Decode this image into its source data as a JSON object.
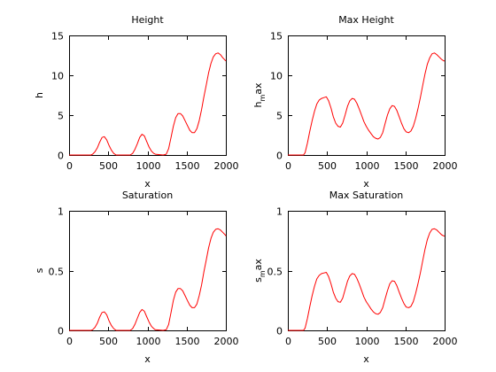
{
  "colors": {
    "line": "#ff0000",
    "axis": "#000000",
    "background": "#ffffff"
  },
  "chart_data": [
    {
      "type": "line",
      "title": "Height",
      "xlabel": "x",
      "ylabel": {
        "main": "h",
        "sub": ""
      },
      "xlim": [
        0,
        2000
      ],
      "ylim": [
        0,
        15
      ],
      "xticks": [
        0,
        500,
        1000,
        1500,
        2000
      ],
      "yticks": [
        0,
        5,
        10,
        15
      ],
      "ytick_labels": [
        "0",
        "5",
        "10",
        "15"
      ],
      "grid": false,
      "series": [
        {
          "x": [
            0,
            280,
            300,
            330,
            360,
            390,
            420,
            450,
            480,
            510,
            540,
            570,
            600,
            700,
            780,
            810,
            840,
            870,
            900,
            930,
            960,
            990,
            1020,
            1050,
            1080,
            1100,
            1200,
            1240,
            1270,
            1300,
            1330,
            1360,
            1390,
            1420,
            1450,
            1480,
            1510,
            1540,
            1570,
            1600,
            1630,
            1660,
            1690,
            1720,
            1750,
            1780,
            1810,
            1840,
            1870,
            1900,
            1930,
            1960,
            1990,
            2000
          ],
          "y": [
            0,
            0,
            0.1,
            0.4,
            0.9,
            1.6,
            2.2,
            2.3,
            1.9,
            1.2,
            0.6,
            0.2,
            0,
            0,
            0,
            0.2,
            0.7,
            1.4,
            2.2,
            2.6,
            2.4,
            1.7,
            1.0,
            0.5,
            0.2,
            0.1,
            0,
            0.1,
            0.8,
            2.2,
            3.6,
            4.7,
            5.2,
            5.2,
            4.9,
            4.3,
            3.7,
            3.1,
            2.8,
            2.8,
            3.3,
            4.3,
            5.7,
            7.3,
            8.8,
            10.3,
            11.5,
            12.3,
            12.7,
            12.8,
            12.6,
            12.2,
            11.9,
            11.8
          ]
        }
      ]
    },
    {
      "type": "line",
      "title": "Max Height",
      "xlabel": "x",
      "ylabel": {
        "main": "h",
        "sub": "m",
        "rest": "ax"
      },
      "xlim": [
        0,
        2000
      ],
      "ylim": [
        0,
        15
      ],
      "xticks": [
        0,
        500,
        1000,
        1500,
        2000
      ],
      "yticks": [
        0,
        5,
        10,
        15
      ],
      "ytick_labels": [
        "0",
        "5",
        "10",
        "15"
      ],
      "grid": false,
      "series": [
        {
          "x": [
            0,
            200,
            220,
            250,
            280,
            310,
            340,
            370,
            400,
            430,
            460,
            490,
            520,
            550,
            580,
            610,
            640,
            670,
            700,
            730,
            760,
            790,
            820,
            850,
            880,
            910,
            940,
            970,
            1000,
            1030,
            1060,
            1090,
            1120,
            1150,
            1180,
            1210,
            1240,
            1270,
            1300,
            1330,
            1360,
            1390,
            1420,
            1450,
            1480,
            1510,
            1540,
            1570,
            1600,
            1630,
            1660,
            1690,
            1720,
            1750,
            1780,
            1810,
            1840,
            1870,
            1900,
            1930,
            1960,
            1990,
            2000
          ],
          "y": [
            0,
            0,
            0.3,
            1.5,
            3.0,
            4.3,
            5.5,
            6.4,
            6.9,
            7.1,
            7.2,
            7.3,
            6.8,
            5.9,
            4.8,
            4.0,
            3.6,
            3.5,
            4.0,
            5.0,
            6.1,
            6.8,
            7.1,
            7.0,
            6.5,
            5.8,
            5.0,
            4.2,
            3.6,
            3.1,
            2.7,
            2.3,
            2.1,
            2.0,
            2.2,
            2.8,
            3.9,
            5.0,
            5.8,
            6.2,
            6.1,
            5.6,
            4.8,
            4.0,
            3.3,
            2.9,
            2.8,
            3.0,
            3.6,
            4.6,
            5.8,
            7.2,
            8.7,
            10.2,
            11.4,
            12.2,
            12.7,
            12.8,
            12.6,
            12.3,
            12.0,
            11.8,
            11.8
          ]
        }
      ]
    },
    {
      "type": "line",
      "title": "Saturation",
      "xlabel": "x",
      "ylabel": {
        "main": "s",
        "sub": ""
      },
      "xlim": [
        0,
        2000
      ],
      "ylim": [
        0,
        1
      ],
      "xticks": [
        0,
        500,
        1000,
        1500,
        2000
      ],
      "yticks": [
        0,
        0.5,
        1
      ],
      "ytick_labels": [
        "0",
        "0.5",
        "1"
      ],
      "grid": false,
      "series": [
        {
          "x": [
            0,
            280,
            300,
            330,
            360,
            390,
            420,
            450,
            480,
            510,
            540,
            570,
            600,
            700,
            780,
            810,
            840,
            870,
            900,
            930,
            960,
            990,
            1020,
            1050,
            1080,
            1100,
            1200,
            1240,
            1270,
            1300,
            1330,
            1360,
            1390,
            1420,
            1450,
            1480,
            1510,
            1540,
            1570,
            1600,
            1630,
            1660,
            1690,
            1720,
            1750,
            1780,
            1810,
            1840,
            1870,
            1900,
            1930,
            1960,
            1990,
            2000
          ],
          "y": [
            0,
            0,
            0.005,
            0.025,
            0.06,
            0.11,
            0.15,
            0.155,
            0.13,
            0.08,
            0.04,
            0.015,
            0,
            0,
            0,
            0.015,
            0.05,
            0.1,
            0.15,
            0.175,
            0.16,
            0.115,
            0.07,
            0.035,
            0.015,
            0.005,
            0,
            0.005,
            0.05,
            0.15,
            0.25,
            0.32,
            0.35,
            0.35,
            0.33,
            0.29,
            0.25,
            0.21,
            0.19,
            0.19,
            0.22,
            0.29,
            0.38,
            0.49,
            0.59,
            0.69,
            0.77,
            0.82,
            0.845,
            0.85,
            0.84,
            0.82,
            0.8,
            0.79
          ]
        }
      ]
    },
    {
      "type": "line",
      "title": "Max Saturation",
      "xlabel": "x",
      "ylabel": {
        "main": "s",
        "sub": "m",
        "rest": "ax"
      },
      "xlim": [
        0,
        2000
      ],
      "ylim": [
        0,
        1
      ],
      "xticks": [
        0,
        500,
        1000,
        1500,
        2000
      ],
      "yticks": [
        0,
        0.5,
        1
      ],
      "ytick_labels": [
        "0",
        "0.5",
        "1"
      ],
      "grid": false,
      "series": [
        {
          "x": [
            0,
            200,
            220,
            250,
            280,
            310,
            340,
            370,
            400,
            430,
            460,
            490,
            520,
            550,
            580,
            610,
            640,
            670,
            700,
            730,
            760,
            790,
            820,
            850,
            880,
            910,
            940,
            970,
            1000,
            1030,
            1060,
            1090,
            1120,
            1150,
            1180,
            1210,
            1240,
            1270,
            1300,
            1330,
            1360,
            1390,
            1420,
            1450,
            1480,
            1510,
            1540,
            1570,
            1600,
            1630,
            1660,
            1690,
            1720,
            1750,
            1780,
            1810,
            1840,
            1870,
            1900,
            1930,
            1960,
            1990,
            2000
          ],
          "y": [
            0,
            0,
            0.02,
            0.1,
            0.2,
            0.29,
            0.37,
            0.43,
            0.46,
            0.475,
            0.48,
            0.485,
            0.45,
            0.39,
            0.32,
            0.27,
            0.24,
            0.235,
            0.27,
            0.34,
            0.41,
            0.455,
            0.475,
            0.47,
            0.435,
            0.39,
            0.335,
            0.28,
            0.24,
            0.21,
            0.18,
            0.155,
            0.14,
            0.135,
            0.15,
            0.19,
            0.26,
            0.33,
            0.39,
            0.415,
            0.41,
            0.375,
            0.32,
            0.27,
            0.225,
            0.195,
            0.19,
            0.2,
            0.24,
            0.31,
            0.39,
            0.48,
            0.58,
            0.68,
            0.76,
            0.815,
            0.845,
            0.85,
            0.84,
            0.82,
            0.8,
            0.79,
            0.79
          ]
        }
      ]
    }
  ]
}
